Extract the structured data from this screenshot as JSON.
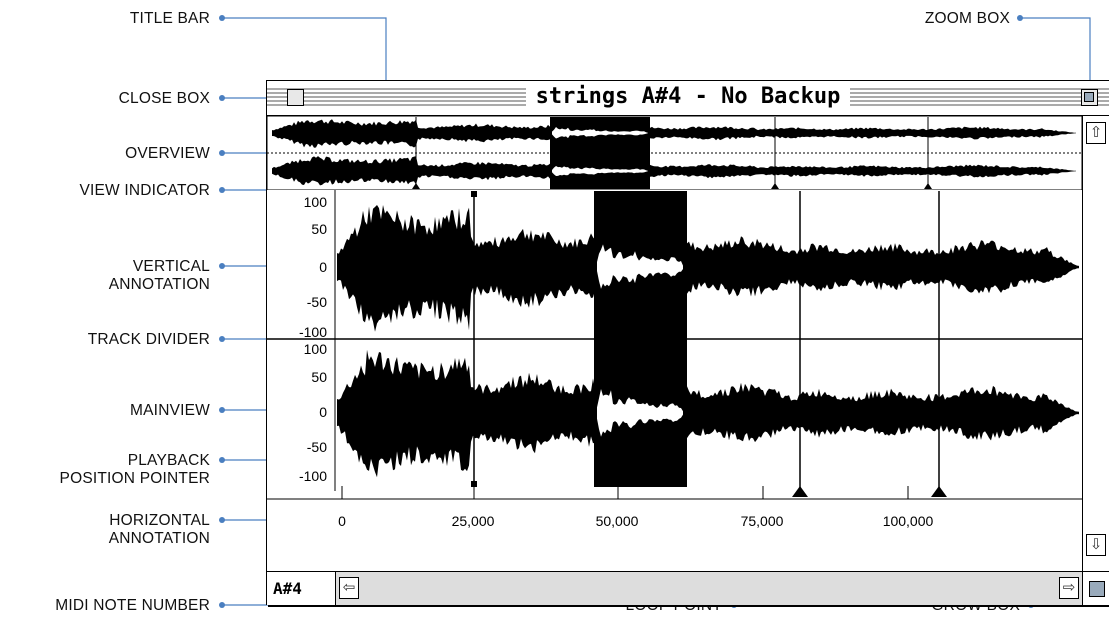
{
  "callouts": {
    "title_bar": "TITLE BAR",
    "close_box": "CLOSE BOX",
    "overview": "OVERVIEW",
    "view_indicator": "VIEW INDICATOR",
    "vertical_annotation": "VERTICAL\nANNOTATION",
    "track_divider": "TRACK DIVIDER",
    "mainview": "MAINVIEW",
    "playback_position_pointer": "PLAYBACK\nPOSITION POINTER",
    "horizontal_annotation": "HORIZONTAL\nANNOTATION",
    "midi_note_number": "MIDI NOTE NUMBER",
    "zoom_box": "ZOOM BOX",
    "loop_point": "LOOP POINT",
    "grow_box": "GROW BOX"
  },
  "window": {
    "title": "strings A#4 - No Backup",
    "midi_note": "A#4"
  },
  "vertical_axis": {
    "top_track": [
      "100",
      "50",
      "0",
      "-50",
      "-100"
    ],
    "bottom_track": [
      "100",
      "50",
      "0",
      "-50",
      "-100"
    ]
  },
  "horizontal_axis": {
    "ticks": [
      "0",
      "25,000",
      "50,000",
      "75,000",
      "100,000"
    ]
  },
  "colors": {
    "accent": "#4a7fc0",
    "waveform": "#000000"
  }
}
